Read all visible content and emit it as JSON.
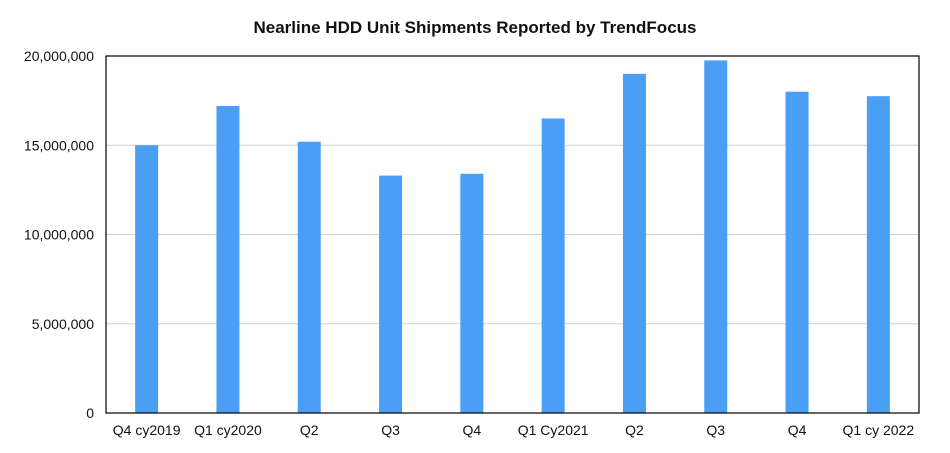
{
  "chart_data": {
    "type": "bar",
    "title": "Nearline HDD Unit Shipments Reported by TrendFocus",
    "xlabel": "",
    "ylabel": "",
    "categories": [
      "Q4 cy2019",
      "Q1 cy2020",
      "Q2",
      "Q3",
      "Q4",
      "Q1 Cy2021",
      "Q2",
      "Q3",
      "Q4",
      "Q1 cy 2022"
    ],
    "values": [
      15000000,
      17200000,
      15200000,
      13300000,
      13400000,
      16500000,
      19000000,
      19750000,
      18000000,
      17750000
    ],
    "ylim": [
      0,
      20000000
    ],
    "yticks": [
      0,
      5000000,
      10000000,
      15000000,
      20000000
    ],
    "ytick_labels": [
      "0",
      "5,000,000",
      "10,000,000",
      "15,000,000",
      "20,000,000"
    ],
    "grid": "horizontal",
    "bar_color": "#4a9ff5",
    "grid_color": "#d0d0d0",
    "axis_color": "#000000"
  }
}
